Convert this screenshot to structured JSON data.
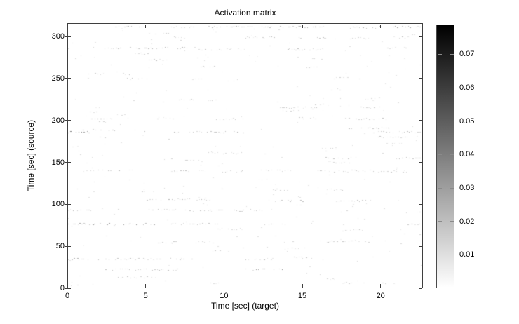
{
  "figure": {
    "title": "Activation matrix",
    "xlabel": "Time [sec] (target)",
    "ylabel": "Time [sec] (source)"
  },
  "chart_data": {
    "type": "heatmap",
    "title": "Activation matrix",
    "xlabel": "Time [sec] (target)",
    "ylabel": "Time [sec] (source)",
    "xlim": [
      0,
      22.7
    ],
    "ylim": [
      0,
      316
    ],
    "x_ticks": [
      0,
      5,
      10,
      15,
      20
    ],
    "y_ticks": [
      0,
      50,
      100,
      150,
      200,
      250,
      300
    ],
    "grid": false,
    "background_color": "#ffffff",
    "axis_color": "#3f3f3f",
    "colorbar": {
      "min": 0,
      "max": 0.0789,
      "ticks": [
        0.01,
        0.02,
        0.03,
        0.04,
        0.05,
        0.06,
        0.07
      ],
      "top_color": "#000000",
      "bottom_color": "#ffffff",
      "colormap": "flipped-gray (dark = high activation)"
    },
    "description": "Sparse activation matrix rendered as faint dashed horizontal streaks of gray dots on a white field; streak y = source time (sec), x span = target time (sec), a = darkness (max alpha).",
    "streaks": [
      {
        "y": 313,
        "x0": 3.0,
        "x1": 5.0,
        "a": 0.2
      },
      {
        "y": 313,
        "x0": 6.6,
        "x1": 8.1,
        "a": 0.18
      },
      {
        "y": 313,
        "x0": 9.0,
        "x1": 11.3,
        "a": 0.2
      },
      {
        "y": 313,
        "x0": 11.4,
        "x1": 13.2,
        "a": 0.22
      },
      {
        "y": 313,
        "x0": 13.6,
        "x1": 16.7,
        "a": 0.22
      },
      {
        "y": 312,
        "x0": 18.1,
        "x1": 19.9,
        "a": 0.2
      },
      {
        "y": 313,
        "x0": 20.0,
        "x1": 22.6,
        "a": 0.24
      },
      {
        "y": 305,
        "x0": 5.6,
        "x1": 6.5,
        "a": 0.15
      },
      {
        "y": 300,
        "x0": 6.8,
        "x1": 7.5,
        "a": 0.14
      },
      {
        "y": 300,
        "x0": 11.4,
        "x1": 13.3,
        "a": 0.16
      },
      {
        "y": 299,
        "x0": 14.8,
        "x1": 16.6,
        "a": 0.16
      },
      {
        "y": 299,
        "x0": 18.1,
        "x1": 19.3,
        "a": 0.15
      },
      {
        "y": 300,
        "x0": 20.9,
        "x1": 22.1,
        "a": 0.16
      },
      {
        "y": 287,
        "x0": 1.5,
        "x1": 4.6,
        "a": 0.18
      },
      {
        "y": 287,
        "x0": 4.9,
        "x1": 8.2,
        "a": 0.2
      },
      {
        "y": 286,
        "x0": 8.5,
        "x1": 11.3,
        "a": 0.17
      },
      {
        "y": 286,
        "x0": 14.1,
        "x1": 16.4,
        "a": 0.18
      },
      {
        "y": 287,
        "x0": 20.3,
        "x1": 22.0,
        "a": 0.18
      },
      {
        "y": 281,
        "x0": 4.3,
        "x1": 5.2,
        "a": 0.14
      },
      {
        "y": 273,
        "x0": 5.2,
        "x1": 6.4,
        "a": 0.16
      },
      {
        "y": 274,
        "x0": 15.5,
        "x1": 16.3,
        "a": 0.14
      },
      {
        "y": 274,
        "x0": 21.4,
        "x1": 21.8,
        "a": 0.13
      },
      {
        "y": 265,
        "x0": 8.5,
        "x1": 9.5,
        "a": 0.15
      },
      {
        "y": 265,
        "x0": 15.3,
        "x1": 16.0,
        "a": 0.14
      },
      {
        "y": 256,
        "x0": 1.3,
        "x1": 2.4,
        "a": 0.15
      },
      {
        "y": 256,
        "x0": 3.5,
        "x1": 4.3,
        "a": 0.16
      },
      {
        "y": 250,
        "x0": 3.8,
        "x1": 5.1,
        "a": 0.17
      },
      {
        "y": 250,
        "x0": 7.8,
        "x1": 8.8,
        "a": 0.15
      },
      {
        "y": 249,
        "x0": 10.1,
        "x1": 11.0,
        "a": 0.14
      },
      {
        "y": 251,
        "x0": 16.9,
        "x1": 18.0,
        "a": 0.15
      },
      {
        "y": 250,
        "x0": 18.7,
        "x1": 19.3,
        "a": 0.14
      },
      {
        "y": 238,
        "x0": 16.9,
        "x1": 17.5,
        "a": 0.13
      },
      {
        "y": 234,
        "x0": 4.2,
        "x1": 4.6,
        "a": 0.13
      },
      {
        "y": 227,
        "x0": 19.1,
        "x1": 20.0,
        "a": 0.15
      },
      {
        "y": 225,
        "x0": 3.4,
        "x1": 4.5,
        "a": 0.16
      },
      {
        "y": 225,
        "x0": 6.9,
        "x1": 8.0,
        "a": 0.15
      },
      {
        "y": 224,
        "x0": 9.0,
        "x1": 9.6,
        "a": 0.14
      },
      {
        "y": 220,
        "x0": 15.5,
        "x1": 16.4,
        "a": 0.14
      },
      {
        "y": 216,
        "x0": 1.6,
        "x1": 2.1,
        "a": 0.14
      },
      {
        "y": 216,
        "x0": 13.6,
        "x1": 16.0,
        "a": 0.16
      },
      {
        "y": 216,
        "x0": 18.8,
        "x1": 20.2,
        "a": 0.15
      },
      {
        "y": 212,
        "x0": 13.9,
        "x1": 14.8,
        "a": 0.14
      },
      {
        "y": 211,
        "x0": 1.4,
        "x1": 1.9,
        "a": 0.14
      },
      {
        "y": 203,
        "x0": 1.5,
        "x1": 3.0,
        "a": 0.28
      },
      {
        "y": 203,
        "x0": 5.7,
        "x1": 7.0,
        "a": 0.16
      },
      {
        "y": 202,
        "x0": 9.5,
        "x1": 11.3,
        "a": 0.16
      },
      {
        "y": 203,
        "x0": 14.8,
        "x1": 15.9,
        "a": 0.15
      },
      {
        "y": 202,
        "x0": 17.8,
        "x1": 20.6,
        "a": 0.16
      },
      {
        "y": 199,
        "x0": 1.8,
        "x1": 2.4,
        "a": 0.14
      },
      {
        "y": 191,
        "x0": 18.0,
        "x1": 20.6,
        "a": 0.17
      },
      {
        "y": 189,
        "x0": 0.9,
        "x1": 3.0,
        "a": 0.2
      },
      {
        "y": 188,
        "x0": 4.2,
        "x1": 5.2,
        "a": 0.16
      },
      {
        "y": 186,
        "x0": 0.0,
        "x1": 1.5,
        "a": 0.38
      },
      {
        "y": 186,
        "x0": 6.7,
        "x1": 11.3,
        "a": 0.18
      },
      {
        "y": 186,
        "x0": 19.6,
        "x1": 22.6,
        "a": 0.2
      },
      {
        "y": 180,
        "x0": 1.9,
        "x1": 2.4,
        "a": 0.14
      },
      {
        "y": 180,
        "x0": 19.9,
        "x1": 21.8,
        "a": 0.16
      },
      {
        "y": 173,
        "x0": 20.3,
        "x1": 21.5,
        "a": 0.15
      },
      {
        "y": 166,
        "x0": 16.3,
        "x1": 17.2,
        "a": 0.14
      },
      {
        "y": 161,
        "x0": 9.0,
        "x1": 11.3,
        "a": 0.16
      },
      {
        "y": 155,
        "x0": 16.3,
        "x1": 18.5,
        "a": 0.15
      },
      {
        "y": 155,
        "x0": 21.1,
        "x1": 22.6,
        "a": 0.16
      },
      {
        "y": 152,
        "x0": 7.5,
        "x1": 8.8,
        "a": 0.15
      },
      {
        "y": 150,
        "x0": 16.7,
        "x1": 18.1,
        "a": 0.14
      },
      {
        "y": 140,
        "x0": 1.0,
        "x1": 4.3,
        "a": 0.17
      },
      {
        "y": 140,
        "x0": 6.6,
        "x1": 8.8,
        "a": 0.16
      },
      {
        "y": 139,
        "x0": 9.9,
        "x1": 11.3,
        "a": 0.15
      },
      {
        "y": 140,
        "x0": 12.7,
        "x1": 15.1,
        "a": 0.17
      },
      {
        "y": 139,
        "x0": 15.9,
        "x1": 18.1,
        "a": 0.16
      },
      {
        "y": 140,
        "x0": 18.2,
        "x1": 19.7,
        "a": 0.15
      },
      {
        "y": 139,
        "x0": 19.9,
        "x1": 21.8,
        "a": 0.16
      },
      {
        "y": 129,
        "x0": 11.4,
        "x1": 12.9,
        "a": 0.14
      },
      {
        "y": 117,
        "x0": 13.0,
        "x1": 14.2,
        "a": 0.14
      },
      {
        "y": 117,
        "x0": 16.6,
        "x1": 17.6,
        "a": 0.14
      },
      {
        "y": 115,
        "x0": 4.6,
        "x1": 5.5,
        "a": 0.14
      },
      {
        "y": 105,
        "x0": 4.8,
        "x1": 9.3,
        "a": 0.18
      },
      {
        "y": 104,
        "x0": 12.9,
        "x1": 15.3,
        "a": 0.16
      },
      {
        "y": 104,
        "x0": 17.2,
        "x1": 19.6,
        "a": 0.16
      },
      {
        "y": 99,
        "x0": 14.7,
        "x1": 15.4,
        "a": 0.13
      },
      {
        "y": 93,
        "x0": 0.0,
        "x1": 1.5,
        "a": 0.18
      },
      {
        "y": 93,
        "x0": 3.1,
        "x1": 3.7,
        "a": 0.14
      },
      {
        "y": 93,
        "x0": 5.2,
        "x1": 7.0,
        "a": 0.16
      },
      {
        "y": 92,
        "x0": 7.5,
        "x1": 11.3,
        "a": 0.16
      },
      {
        "y": 93,
        "x0": 11.7,
        "x1": 12.7,
        "a": 0.15
      },
      {
        "y": 90,
        "x0": 22.1,
        "x1": 22.6,
        "a": 0.14
      },
      {
        "y": 76,
        "x0": 0.0,
        "x1": 5.7,
        "a": 0.26
      },
      {
        "y": 76,
        "x0": 6.6,
        "x1": 9.6,
        "a": 0.17
      },
      {
        "y": 76,
        "x0": 12.6,
        "x1": 13.9,
        "a": 0.15
      },
      {
        "y": 75,
        "x0": 21.8,
        "x1": 22.6,
        "a": 0.16
      },
      {
        "y": 70,
        "x0": 9.6,
        "x1": 11.3,
        "a": 0.15
      },
      {
        "y": 68,
        "x0": 17.6,
        "x1": 18.9,
        "a": 0.14
      },
      {
        "y": 55,
        "x0": 16.6,
        "x1": 19.3,
        "a": 0.16
      },
      {
        "y": 54,
        "x0": 5.6,
        "x1": 7.0,
        "a": 0.15
      },
      {
        "y": 54,
        "x0": 8.2,
        "x1": 9.3,
        "a": 0.14
      },
      {
        "y": 46,
        "x0": 13.9,
        "x1": 15.5,
        "a": 0.14
      },
      {
        "y": 44,
        "x0": 9.3,
        "x1": 10.4,
        "a": 0.14
      },
      {
        "y": 34,
        "x0": 0.0,
        "x1": 2.2,
        "a": 0.2
      },
      {
        "y": 34,
        "x0": 2.4,
        "x1": 4.2,
        "a": 0.18
      },
      {
        "y": 34,
        "x0": 4.3,
        "x1": 6.3,
        "a": 0.18
      },
      {
        "y": 34,
        "x0": 6.4,
        "x1": 8.2,
        "a": 0.17
      },
      {
        "y": 34,
        "x0": 11.4,
        "x1": 13.3,
        "a": 0.16
      },
      {
        "y": 35,
        "x0": 14.5,
        "x1": 15.7,
        "a": 0.15
      },
      {
        "y": 21,
        "x0": 2.2,
        "x1": 7.3,
        "a": 0.18
      },
      {
        "y": 21,
        "x0": 11.4,
        "x1": 13.9,
        "a": 0.3
      },
      {
        "y": 12,
        "x0": 3.0,
        "x1": 5.7,
        "a": 0.16
      },
      {
        "y": 9,
        "x0": 16.3,
        "x1": 17.2,
        "a": 0.14
      },
      {
        "y": 5,
        "x0": 8.8,
        "x1": 9.7,
        "a": 0.14
      },
      {
        "y": 5,
        "x0": 17.6,
        "x1": 18.2,
        "a": 0.13
      },
      {
        "y": 5,
        "x0": 20.2,
        "x1": 21.5,
        "a": 0.15
      }
    ],
    "noise": {
      "dot_count": 240,
      "seed": 20519,
      "max_alpha": 0.12
    }
  }
}
